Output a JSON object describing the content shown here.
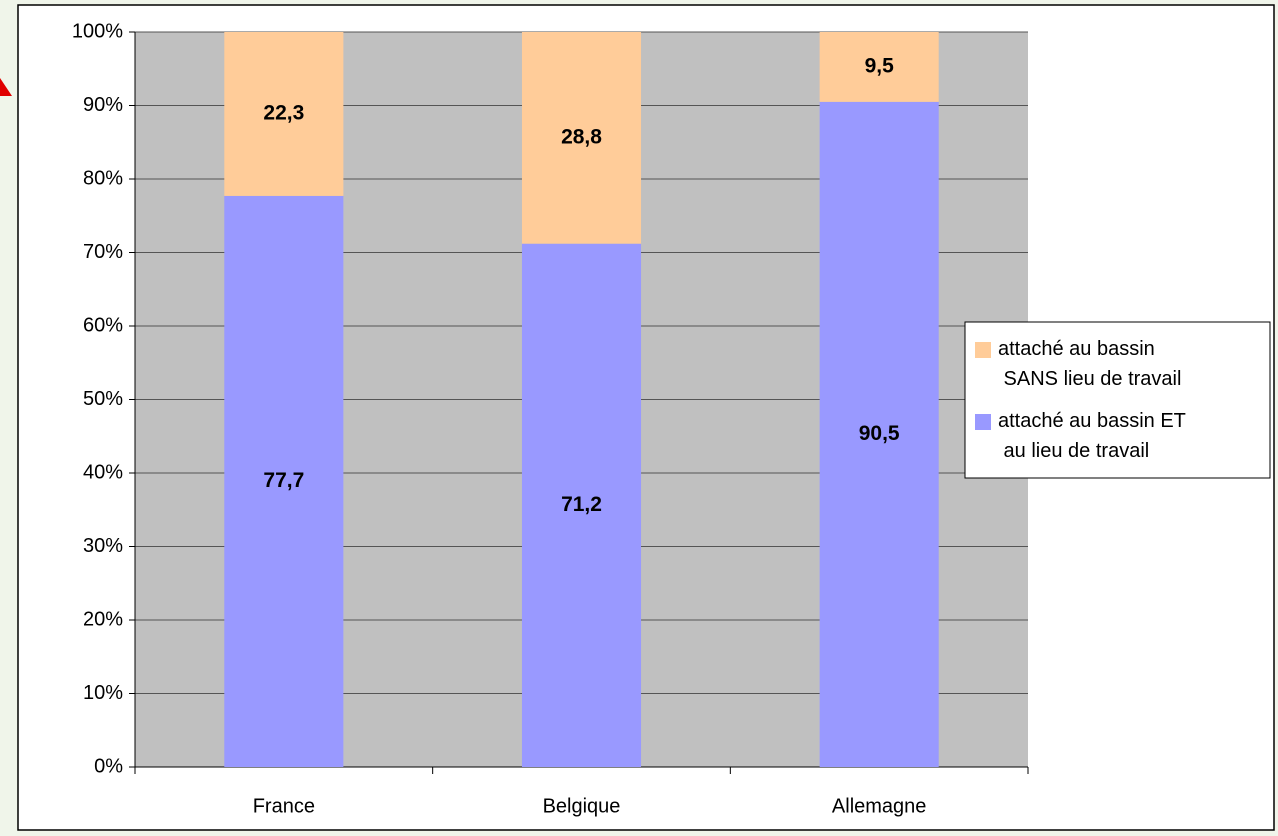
{
  "chart_data": {
    "type": "stacked_bar",
    "categories": [
      "France",
      "Belgique",
      "Allemagne"
    ],
    "series": [
      {
        "name": "attaché au bassin ET au lieu de travail",
        "color": "#9999ff",
        "values": [
          77.7,
          71.2,
          90.5
        ],
        "value_labels": [
          "77,7",
          "71,2",
          "90,5"
        ]
      },
      {
        "name": "attaché au bassin SANS lieu de travail",
        "color": "#ffcc99",
        "values": [
          22.3,
          28.8,
          9.5
        ],
        "value_labels": [
          "22,3",
          "28,8",
          "9,5"
        ]
      }
    ],
    "ylim": [
      0,
      100
    ],
    "yticks": [
      {
        "value": 0,
        "label": "0%"
      },
      {
        "value": 10,
        "label": "10%"
      },
      {
        "value": 20,
        "label": "20%"
      },
      {
        "value": 30,
        "label": "30%"
      },
      {
        "value": 40,
        "label": "40%"
      },
      {
        "value": 50,
        "label": "50%"
      },
      {
        "value": 60,
        "label": "60%"
      },
      {
        "value": 70,
        "label": "70%"
      },
      {
        "value": 80,
        "label": "80%"
      },
      {
        "value": 90,
        "label": "90%"
      },
      {
        "value": 100,
        "label": "100%"
      }
    ],
    "grid": true,
    "legend": "right"
  }
}
